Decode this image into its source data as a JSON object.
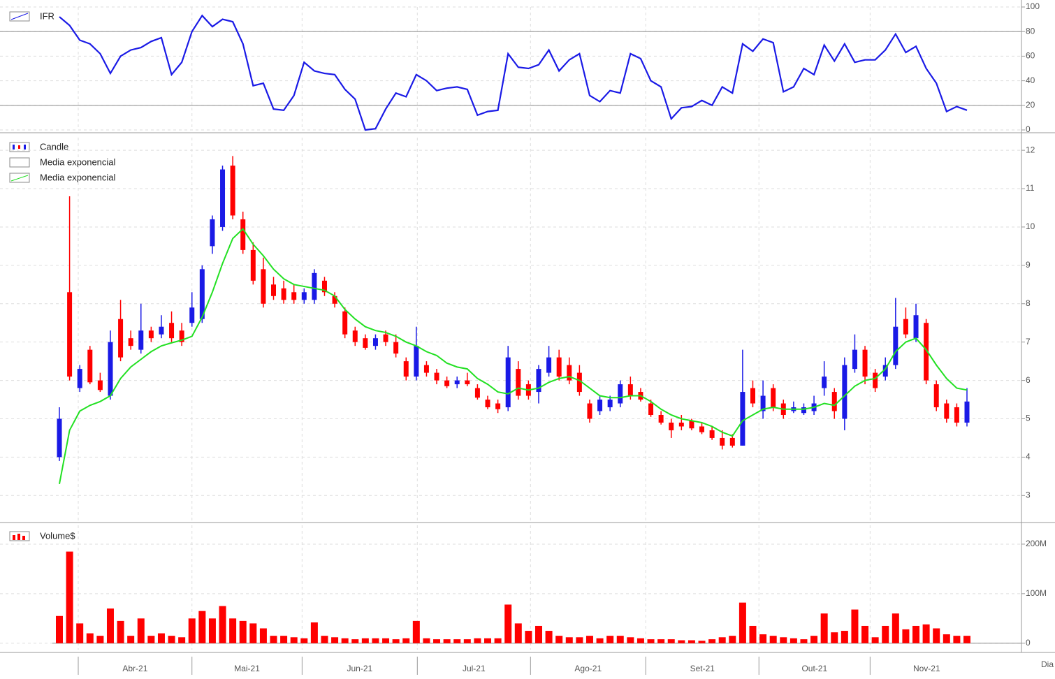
{
  "chart_data": [
    {
      "type": "line",
      "legend": "IFR",
      "color": "#1a1ae6",
      "values": [
        92,
        85,
        73,
        70,
        62,
        46,
        60,
        65,
        67,
        72,
        75,
        45,
        55,
        80,
        93,
        84,
        90,
        88,
        70,
        36,
        38,
        17,
        16,
        28,
        55,
        48,
        46,
        45,
        33,
        25,
        0,
        1,
        17,
        30,
        27,
        45,
        40,
        32,
        34,
        35,
        33,
        12,
        15,
        16,
        62,
        51,
        50,
        53,
        65,
        48,
        57,
        62,
        28,
        23,
        32,
        30,
        62,
        58,
        40,
        35,
        9,
        18,
        19,
        24,
        20,
        35,
        30,
        70,
        64,
        74,
        71,
        31,
        35,
        50,
        45,
        69,
        56,
        70,
        55,
        57,
        57,
        65,
        78,
        63,
        68,
        50,
        38,
        15,
        19,
        16
      ],
      "ylim": [
        0,
        100
      ],
      "yticks": [
        0,
        20,
        40,
        60,
        80,
        100
      ],
      "reference_lines": [
        20,
        80
      ],
      "grid": true
    },
    {
      "type": "candlestick",
      "up_color": "#1a1ae6",
      "down_color": "#ff0000",
      "series": [
        {
          "name": "Candle",
          "values": [
            [
              4.0,
              5.3,
              3.9,
              5.0
            ],
            [
              8.3,
              10.8,
              6.0,
              6.1
            ],
            [
              5.8,
              6.4,
              5.7,
              6.3
            ],
            [
              6.8,
              6.9,
              5.9,
              5.95
            ],
            [
              6.0,
              6.2,
              5.7,
              5.75
            ],
            [
              5.6,
              7.3,
              5.5,
              7.0
            ],
            [
              7.6,
              8.1,
              6.5,
              6.6
            ],
            [
              7.1,
              7.3,
              6.8,
              6.9
            ],
            [
              6.8,
              8.0,
              6.7,
              7.3
            ],
            [
              7.3,
              7.4,
              7.0,
              7.1
            ],
            [
              7.2,
              7.7,
              7.1,
              7.4
            ],
            [
              7.5,
              7.8,
              7.0,
              7.1
            ],
            [
              7.3,
              7.5,
              6.9,
              7.0
            ],
            [
              7.5,
              8.3,
              7.4,
              7.9
            ],
            [
              7.6,
              9.0,
              7.5,
              8.9
            ],
            [
              9.5,
              10.3,
              9.3,
              10.2
            ],
            [
              10.0,
              11.6,
              9.9,
              11.5
            ],
            [
              11.6,
              11.85,
              10.2,
              10.3
            ],
            [
              10.2,
              10.4,
              9.3,
              9.4
            ],
            [
              9.4,
              9.6,
              8.5,
              8.6
            ],
            [
              8.9,
              9.2,
              7.9,
              8.0
            ],
            [
              8.5,
              8.7,
              8.1,
              8.2
            ],
            [
              8.4,
              8.6,
              8.0,
              8.1
            ],
            [
              8.3,
              8.5,
              8.0,
              8.1
            ],
            [
              8.1,
              8.4,
              8.0,
              8.3
            ],
            [
              8.1,
              8.9,
              8.0,
              8.8
            ],
            [
              8.6,
              8.7,
              8.2,
              8.3
            ],
            [
              8.2,
              8.3,
              7.9,
              8.0
            ],
            [
              7.8,
              7.9,
              7.1,
              7.2
            ],
            [
              7.3,
              7.4,
              6.9,
              7.0
            ],
            [
              7.1,
              7.2,
              6.8,
              6.85
            ],
            [
              6.9,
              7.2,
              6.8,
              7.1
            ],
            [
              7.2,
              7.3,
              6.9,
              7.0
            ],
            [
              7.0,
              7.2,
              6.6,
              6.7
            ],
            [
              6.5,
              6.6,
              6.0,
              6.1
            ],
            [
              6.1,
              7.4,
              6.0,
              6.9
            ],
            [
              6.4,
              6.5,
              6.1,
              6.2
            ],
            [
              6.2,
              6.3,
              5.9,
              6.0
            ],
            [
              6.0,
              6.1,
              5.8,
              5.85
            ],
            [
              5.9,
              6.1,
              5.8,
              6.0
            ],
            [
              6.0,
              6.2,
              5.85,
              5.9
            ],
            [
              5.8,
              5.9,
              5.5,
              5.55
            ],
            [
              5.5,
              5.6,
              5.25,
              5.3
            ],
            [
              5.4,
              5.5,
              5.15,
              5.25
            ],
            [
              5.3,
              6.9,
              5.2,
              6.6
            ],
            [
              6.3,
              6.5,
              5.5,
              5.6
            ],
            [
              5.9,
              6.0,
              5.5,
              5.6
            ],
            [
              5.7,
              6.4,
              5.4,
              6.3
            ],
            [
              6.2,
              6.9,
              6.1,
              6.6
            ],
            [
              6.6,
              6.8,
              6.0,
              6.1
            ],
            [
              6.4,
              6.6,
              5.9,
              6.0
            ],
            [
              6.2,
              6.4,
              5.6,
              5.7
            ],
            [
              5.4,
              5.5,
              4.9,
              5.0
            ],
            [
              5.2,
              5.6,
              5.1,
              5.5
            ],
            [
              5.3,
              5.6,
              5.2,
              5.5
            ],
            [
              5.4,
              6.0,
              5.3,
              5.9
            ],
            [
              5.9,
              6.1,
              5.5,
              5.6
            ],
            [
              5.7,
              5.8,
              5.45,
              5.5
            ],
            [
              5.4,
              5.5,
              5.05,
              5.1
            ],
            [
              5.1,
              5.2,
              4.85,
              4.9
            ],
            [
              4.9,
              5.0,
              4.5,
              4.7
            ],
            [
              4.9,
              5.1,
              4.7,
              4.8
            ],
            [
              4.95,
              5.0,
              4.7,
              4.75
            ],
            [
              4.8,
              4.9,
              4.6,
              4.65
            ],
            [
              4.7,
              4.8,
              4.45,
              4.5
            ],
            [
              4.5,
              4.7,
              4.2,
              4.3
            ],
            [
              4.5,
              4.6,
              4.25,
              4.3
            ],
            [
              4.3,
              6.8,
              4.3,
              5.7
            ],
            [
              5.8,
              6.0,
              5.3,
              5.4
            ],
            [
              5.2,
              6.0,
              5.0,
              5.6
            ],
            [
              5.8,
              5.9,
              5.2,
              5.3
            ],
            [
              5.4,
              5.5,
              5.0,
              5.1
            ],
            [
              5.2,
              5.45,
              5.15,
              5.3
            ],
            [
              5.15,
              5.4,
              5.1,
              5.3
            ],
            [
              5.2,
              5.6,
              5.1,
              5.4
            ],
            [
              5.8,
              6.5,
              5.6,
              6.1
            ],
            [
              5.7,
              5.8,
              5.0,
              5.2
            ],
            [
              5.0,
              6.6,
              4.7,
              6.4
            ],
            [
              6.3,
              7.2,
              6.2,
              6.8
            ],
            [
              6.8,
              6.9,
              5.9,
              6.1
            ],
            [
              6.2,
              6.3,
              5.7,
              5.8
            ],
            [
              6.1,
              6.6,
              6.0,
              6.4
            ],
            [
              6.4,
              8.15,
              6.3,
              7.4
            ],
            [
              7.6,
              7.9,
              7.1,
              7.2
            ],
            [
              7.1,
              8.0,
              7.0,
              7.7
            ],
            [
              7.5,
              7.6,
              5.9,
              6.0
            ],
            [
              5.9,
              6.0,
              5.2,
              5.3
            ],
            [
              5.4,
              5.5,
              4.9,
              5.0
            ],
            [
              5.3,
              5.4,
              4.8,
              4.9
            ],
            [
              4.9,
              5.8,
              4.8,
              5.45
            ]
          ]
        },
        {
          "name": "Media exponencial"
        },
        {
          "name": "Media exponencial",
          "color": "#22e022",
          "values": [
            3.3,
            4.7,
            5.2,
            5.35,
            5.45,
            5.6,
            6.05,
            6.35,
            6.55,
            6.75,
            6.9,
            6.98,
            7.05,
            7.15,
            7.65,
            8.3,
            9.05,
            9.7,
            9.95,
            9.55,
            9.25,
            8.9,
            8.65,
            8.5,
            8.45,
            8.4,
            8.35,
            8.2,
            7.85,
            7.6,
            7.4,
            7.3,
            7.25,
            7.15,
            7.0,
            6.9,
            6.75,
            6.65,
            6.45,
            6.35,
            6.3,
            6.05,
            5.9,
            5.7,
            5.65,
            5.8,
            5.75,
            5.8,
            5.95,
            6.05,
            6.1,
            6.0,
            5.8,
            5.6,
            5.55,
            5.55,
            5.6,
            5.6,
            5.45,
            5.25,
            5.1,
            5.0,
            4.95,
            4.9,
            4.8,
            4.65,
            4.55,
            4.95,
            5.1,
            5.25,
            5.3,
            5.25,
            5.25,
            5.25,
            5.3,
            5.4,
            5.35,
            5.6,
            5.85,
            6.0,
            6.05,
            6.3,
            6.75,
            7.0,
            7.1,
            6.8,
            6.4,
            6.05,
            5.8,
            5.75
          ]
        }
      ],
      "ylim": [
        2.35,
        12.33
      ],
      "yticks": [
        3,
        4,
        5,
        6,
        7,
        8,
        9,
        10,
        11,
        12
      ],
      "grid": true
    },
    {
      "type": "bar",
      "legend": "Volume$",
      "color": "#ff0000",
      "values": [
        55000000,
        185000000,
        40000000,
        20000000,
        15000000,
        70000000,
        45000000,
        15000000,
        50000000,
        15000000,
        20000000,
        15000000,
        12000000,
        50000000,
        65000000,
        50000000,
        75000000,
        50000000,
        45000000,
        40000000,
        30000000,
        15000000,
        15000000,
        12000000,
        10000000,
        42000000,
        15000000,
        12000000,
        10000000,
        8000000,
        10000000,
        10000000,
        10000000,
        8000000,
        10000000,
        45000000,
        10000000,
        8000000,
        8000000,
        8000000,
        8000000,
        10000000,
        10000000,
        10000000,
        78000000,
        40000000,
        25000000,
        35000000,
        25000000,
        15000000,
        12000000,
        12000000,
        15000000,
        10000000,
        15000000,
        15000000,
        12000000,
        10000000,
        8000000,
        8000000,
        8000000,
        6000000,
        6000000,
        5000000,
        8000000,
        12000000,
        15000000,
        82000000,
        35000000,
        18000000,
        15000000,
        12000000,
        10000000,
        8000000,
        15000000,
        60000000,
        22000000,
        25000000,
        68000000,
        35000000,
        12000000,
        35000000,
        60000000,
        28000000,
        35000000,
        38000000,
        30000000,
        18000000,
        15000000,
        15000000
      ],
      "ylim": [
        -13000000,
        238000000
      ],
      "yticks": [
        {
          "value": 0,
          "label": "0"
        },
        {
          "value": 100000000,
          "label": "100M"
        },
        {
          "value": 200000000,
          "label": "200M"
        }
      ],
      "grid": true
    }
  ],
  "x_axis": {
    "label": "Dia",
    "months": [
      "Abr-21",
      "Mai-21",
      "Jun-21",
      "Jul-21",
      "Ago-21",
      "Set-21",
      "Out-21",
      "Nov-21"
    ],
    "xticks": [
      1.85,
      13.0,
      23.8,
      35.1,
      46.2,
      57.5,
      68.6,
      79.5
    ]
  }
}
